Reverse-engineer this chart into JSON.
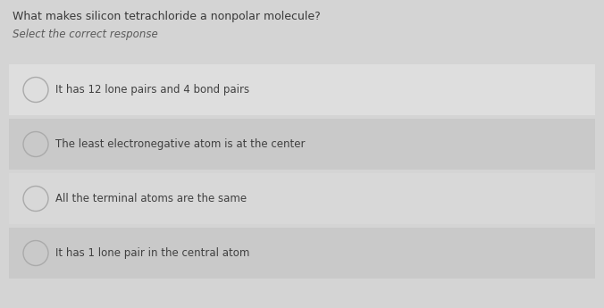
{
  "title": "What makes silicon tetrachloride a nonpolar molecule?",
  "subtitle": "Select the correct response",
  "options": [
    "It has 12 lone pairs and 4 bond pairs",
    "The least electronegative atom is at the center",
    "All the terminal atoms are the same",
    "It has 1 lone pair in the central atom"
  ],
  "bg_color": "#d4d4d4",
  "option_bg_colors": [
    "#dedede",
    "#c9c9c9",
    "#d8d8d8",
    "#c9c9c9"
  ],
  "title_color": "#3a3a3a",
  "subtitle_color": "#5a5a5a",
  "option_text_color": "#404040",
  "circle_edge_color": "#aaaaaa",
  "circle_face_color": "none",
  "title_fontsize": 9,
  "subtitle_fontsize": 8.5,
  "option_fontsize": 8.5,
  "fig_width": 6.76,
  "fig_height": 3.45,
  "dpi": 100
}
